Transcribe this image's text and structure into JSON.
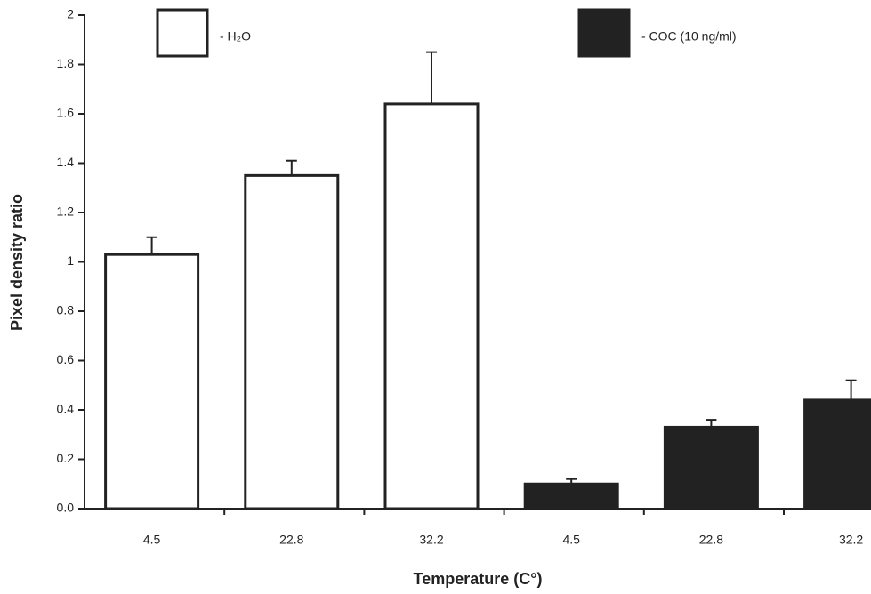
{
  "chart_data": {
    "type": "bar",
    "xlabel": "Temperature (C°)",
    "ylabel": "Pixel density ratio",
    "categories": [
      "4.5",
      "22.8",
      "32.2",
      "4.5",
      "22.8",
      "32.2"
    ],
    "series": [
      {
        "name": "- H₂O",
        "color": "#ffffff",
        "values": [
          1.03,
          1.35,
          1.64,
          null,
          null,
          null
        ],
        "errors": [
          0.07,
          0.06,
          0.21,
          null,
          null,
          null
        ]
      },
      {
        "name": "- COC (10 ng/ml)",
        "color": "#222222",
        "values": [
          null,
          null,
          null,
          0.1,
          0.33,
          0.44
        ],
        "errors": [
          null,
          null,
          null,
          0.02,
          0.03,
          0.08
        ]
      }
    ],
    "ylim": [
      0,
      2
    ],
    "yticks": [
      {
        "value": 0,
        "label": "0.0"
      },
      0.2,
      0.4,
      0.6,
      0.8,
      1,
      1.2,
      1.4,
      1.6,
      1.8,
      2
    ]
  }
}
